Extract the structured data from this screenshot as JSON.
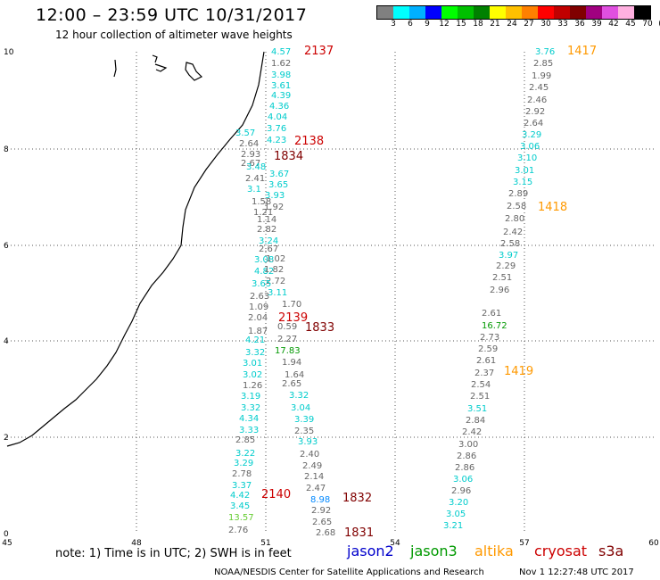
{
  "header": {
    "title": "12:00 – 23:59 UTC 10/31/2017",
    "subtitle": "12 hour collection of altimeter wave heights"
  },
  "legend": {
    "unit_label": "(ft)",
    "ticks": [
      "3",
      "6",
      "9",
      "12",
      "15",
      "18",
      "21",
      "24",
      "27",
      "30",
      "33",
      "36",
      "39",
      "42",
      "45",
      "70"
    ],
    "colors": [
      "#808080",
      "#00ffff",
      "#00b0ff",
      "#0000ff",
      "#00ff00",
      "#00c000",
      "#008000",
      "#ffff00",
      "#ffc000",
      "#ff8000",
      "#ff0000",
      "#c00000",
      "#800000",
      "#a00080",
      "#e050e0",
      "#ffb0e0",
      "#000000"
    ]
  },
  "axes": {
    "x_ticks": [
      "45",
      "48",
      "51",
      "54",
      "57",
      "60"
    ],
    "y_ticks": [
      "0",
      "2",
      "4",
      "6",
      "8",
      "10"
    ]
  },
  "passes": [
    {
      "label": "2137",
      "satellite": "cryosat",
      "color": "#cc0000"
    },
    {
      "label": "2138",
      "satellite": "cryosat",
      "color": "#cc0000"
    },
    {
      "label": "1834",
      "satellite": "s3a",
      "color": "#800000"
    },
    {
      "label": "2139",
      "satellite": "cryosat",
      "color": "#cc0000"
    },
    {
      "label": "1833",
      "satellite": "s3a",
      "color": "#800000"
    },
    {
      "label": "2140",
      "satellite": "cryosat",
      "color": "#cc0000"
    },
    {
      "label": "1832",
      "satellite": "s3a",
      "color": "#800000"
    },
    {
      "label": "1831",
      "satellite": "s3a",
      "color": "#800000"
    },
    {
      "label": "1417",
      "satellite": "altika",
      "color": "#ff9900"
    },
    {
      "label": "1418",
      "satellite": "altika",
      "color": "#ff9900"
    },
    {
      "label": "1419",
      "satellite": "altika",
      "color": "#ff9900"
    }
  ],
  "observations": [
    {
      "v": "4.57",
      "c": "#00cccc"
    },
    {
      "v": "1.62",
      "c": "#666666"
    },
    {
      "v": "3.98",
      "c": "#00cccc"
    },
    {
      "v": "3.61",
      "c": "#00cccc"
    },
    {
      "v": "4.39",
      "c": "#00cccc"
    },
    {
      "v": "4.36",
      "c": "#00cccc"
    },
    {
      "v": "4.04",
      "c": "#00cccc"
    },
    {
      "v": "3.76",
      "c": "#00cccc"
    },
    {
      "v": "4.23",
      "c": "#00cccc"
    },
    {
      "v": "3.57",
      "c": "#00cccc"
    },
    {
      "v": "2.64",
      "c": "#666666"
    },
    {
      "v": "2.93",
      "c": "#666666"
    },
    {
      "v": "2.67",
      "c": "#666666"
    },
    {
      "v": "3.48",
      "c": "#00cccc"
    },
    {
      "v": "3.67",
      "c": "#00cccc"
    },
    {
      "v": "2.41",
      "c": "#666666"
    },
    {
      "v": "3.65",
      "c": "#00cccc"
    },
    {
      "v": "3.1",
      "c": "#00cccc"
    },
    {
      "v": "3.93",
      "c": "#00cccc"
    },
    {
      "v": "1.58",
      "c": "#666666"
    },
    {
      "v": "1.92",
      "c": "#666666"
    },
    {
      "v": "1.21",
      "c": "#666666"
    },
    {
      "v": "1.14",
      "c": "#666666"
    },
    {
      "v": "2.82",
      "c": "#666666"
    },
    {
      "v": "3.24",
      "c": "#00cccc"
    },
    {
      "v": "2.67",
      "c": "#666666"
    },
    {
      "v": "3.08",
      "c": "#00cccc"
    },
    {
      "v": "1.02",
      "c": "#666666"
    },
    {
      "v": "4.82",
      "c": "#00cccc"
    },
    {
      "v": "1.82",
      "c": "#666666"
    },
    {
      "v": "2.72",
      "c": "#666666"
    },
    {
      "v": "3.65",
      "c": "#00cccc"
    },
    {
      "v": "2.63",
      "c": "#666666"
    },
    {
      "v": "3.11",
      "c": "#00cccc"
    },
    {
      "v": "1.09",
      "c": "#666666"
    },
    {
      "v": "1.70",
      "c": "#666666"
    },
    {
      "v": "2.04",
      "c": "#666666"
    },
    {
      "v": "1.87",
      "c": "#666666"
    },
    {
      "v": "0.59",
      "c": "#666666"
    },
    {
      "v": "4.21",
      "c": "#00cccc"
    },
    {
      "v": "2.27",
      "c": "#666666"
    },
    {
      "v": "3.32",
      "c": "#00cccc"
    },
    {
      "v": "17.83",
      "c": "#009900"
    },
    {
      "v": "3.01",
      "c": "#00cccc"
    },
    {
      "v": "1.94",
      "c": "#666666"
    },
    {
      "v": "3.02",
      "c": "#00cccc"
    },
    {
      "v": "1.64",
      "c": "#666666"
    },
    {
      "v": "1.26",
      "c": "#666666"
    },
    {
      "v": "2.65",
      "c": "#666666"
    },
    {
      "v": "3.19",
      "c": "#00cccc"
    },
    {
      "v": "3.32",
      "c": "#00cccc"
    },
    {
      "v": "3.32",
      "c": "#00cccc"
    },
    {
      "v": "3.04",
      "c": "#00cccc"
    },
    {
      "v": "4.34",
      "c": "#00cccc"
    },
    {
      "v": "3.39",
      "c": "#00cccc"
    },
    {
      "v": "3.33",
      "c": "#00cccc"
    },
    {
      "v": "2.35",
      "c": "#666666"
    },
    {
      "v": "2.85",
      "c": "#666666"
    },
    {
      "v": "3.93",
      "c": "#00cccc"
    },
    {
      "v": "3.22",
      "c": "#00cccc"
    },
    {
      "v": "2.40",
      "c": "#666666"
    },
    {
      "v": "3.29",
      "c": "#00cccc"
    },
    {
      "v": "2.49",
      "c": "#666666"
    },
    {
      "v": "2.78",
      "c": "#666666"
    },
    {
      "v": "2.14",
      "c": "#666666"
    },
    {
      "v": "3.37",
      "c": "#00cccc"
    },
    {
      "v": "2.47",
      "c": "#666666"
    },
    {
      "v": "4.42",
      "c": "#00cccc"
    },
    {
      "v": "8.98",
      "c": "#0088ff"
    },
    {
      "v": "3.45",
      "c": "#00cccc"
    },
    {
      "v": "2.92",
      "c": "#666666"
    },
    {
      "v": "13.57",
      "c": "#66cc33"
    },
    {
      "v": "2.65",
      "c": "#666666"
    },
    {
      "v": "2.76",
      "c": "#666666"
    },
    {
      "v": "2.68",
      "c": "#666666"
    },
    {
      "v": "3.76",
      "c": "#00cccc"
    },
    {
      "v": "2.85",
      "c": "#666666"
    },
    {
      "v": "1.99",
      "c": "#666666"
    },
    {
      "v": "2.45",
      "c": "#666666"
    },
    {
      "v": "2.46",
      "c": "#666666"
    },
    {
      "v": "2.92",
      "c": "#666666"
    },
    {
      "v": "2.64",
      "c": "#666666"
    },
    {
      "v": "3.29",
      "c": "#00cccc"
    },
    {
      "v": "3.06",
      "c": "#00cccc"
    },
    {
      "v": "3.10",
      "c": "#00cccc"
    },
    {
      "v": "3.01",
      "c": "#00cccc"
    },
    {
      "v": "3.15",
      "c": "#00cccc"
    },
    {
      "v": "2.89",
      "c": "#666666"
    },
    {
      "v": "2.58",
      "c": "#666666"
    },
    {
      "v": "2.80",
      "c": "#666666"
    },
    {
      "v": "2.42",
      "c": "#666666"
    },
    {
      "v": "2.58",
      "c": "#666666"
    },
    {
      "v": "3.97",
      "c": "#00cccc"
    },
    {
      "v": "2.29",
      "c": "#666666"
    },
    {
      "v": "2.51",
      "c": "#666666"
    },
    {
      "v": "2.96",
      "c": "#666666"
    },
    {
      "v": "2.61",
      "c": "#666666"
    },
    {
      "v": "16.72",
      "c": "#009900"
    },
    {
      "v": "2.73",
      "c": "#666666"
    },
    {
      "v": "2.59",
      "c": "#666666"
    },
    {
      "v": "2.61",
      "c": "#666666"
    },
    {
      "v": "2.37",
      "c": "#666666"
    },
    {
      "v": "2.54",
      "c": "#666666"
    },
    {
      "v": "2.51",
      "c": "#666666"
    },
    {
      "v": "3.51",
      "c": "#00cccc"
    },
    {
      "v": "2.84",
      "c": "#666666"
    },
    {
      "v": "2.42",
      "c": "#666666"
    },
    {
      "v": "3.00",
      "c": "#666666"
    },
    {
      "v": "2.86",
      "c": "#666666"
    },
    {
      "v": "2.86",
      "c": "#666666"
    },
    {
      "v": "3.06",
      "c": "#00cccc"
    },
    {
      "v": "2.96",
      "c": "#666666"
    },
    {
      "v": "3.20",
      "c": "#00cccc"
    },
    {
      "v": "3.05",
      "c": "#00cccc"
    },
    {
      "v": "3.21",
      "c": "#00cccc"
    }
  ],
  "footer": {
    "note": "note: 1) Time is in UTC; 2) SWH is in feet",
    "satellites": [
      {
        "name": "jason2",
        "color": "#0000cc"
      },
      {
        "name": "jason3",
        "color": "#009900"
      },
      {
        "name": "altika",
        "color": "#ff9900"
      },
      {
        "name": "cryosat",
        "color": "#cc0000"
      },
      {
        "name": "s3a",
        "color": "#800000"
      }
    ],
    "credit": "NOAA/NESDIS Center for Satellite Applications and Research",
    "timestamp": "Nov  1 12:27:48 UTC 2017"
  }
}
